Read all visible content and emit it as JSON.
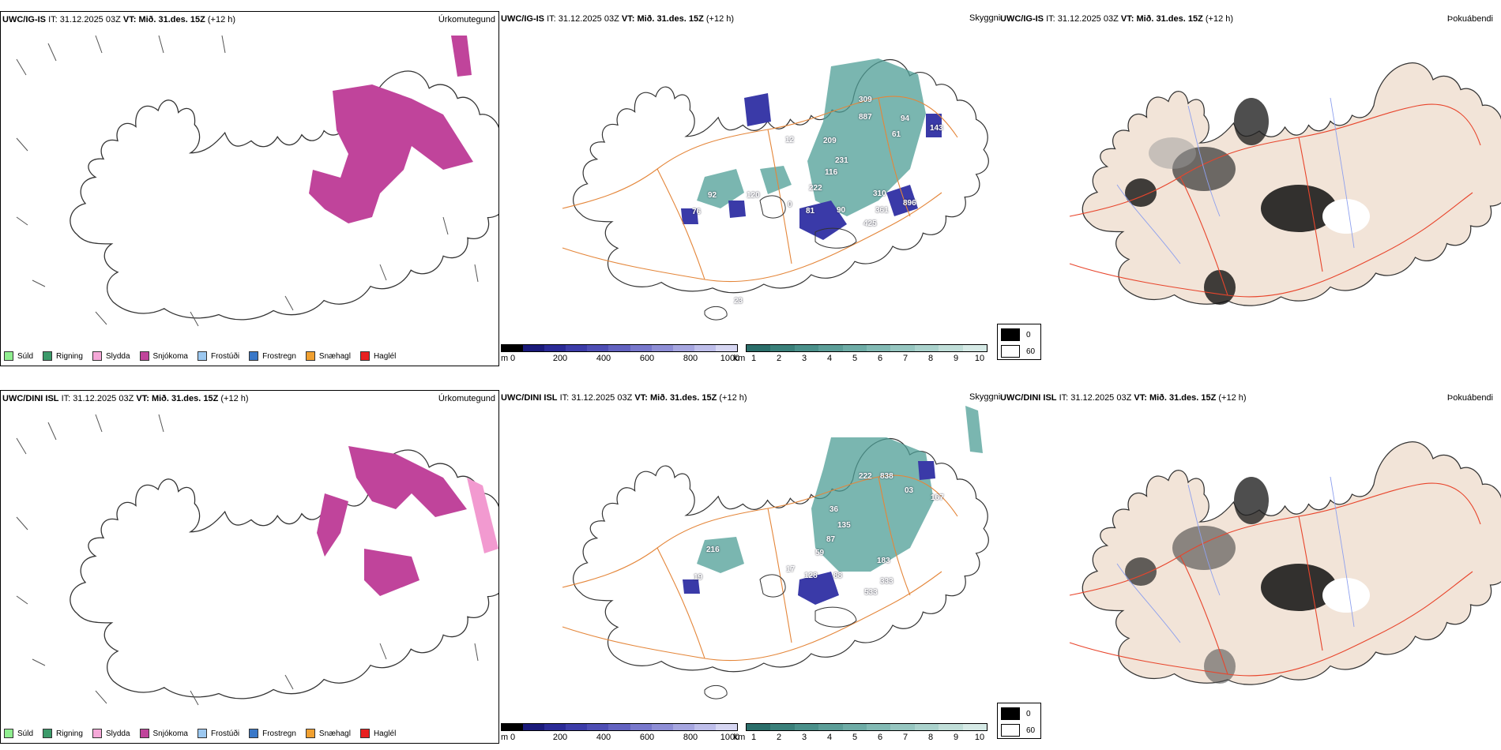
{
  "colors": {
    "snow": "#c0449b",
    "sleet": "#f29ad0",
    "land": "#f2e4d8",
    "road": "#e4863a",
    "road_red": "#e8452c",
    "river": "#8ea0ee",
    "teal": "#4e9e96",
    "blue": "#3a3aa8"
  },
  "row1": {
    "precip": {
      "model": "UWC/IG-IS",
      "it_label": "IT:",
      "it_value": "31.12.2025 03Z",
      "vt_label": "VT: Mið. 31.des. 15Z",
      "lead": "(+12 h)",
      "title": "Úrkomutegund"
    },
    "cloud": {
      "model": "UWC/IG-IS",
      "it_label": "IT:",
      "it_value": "31.12.2025 03Z",
      "vt_label": "VT: Mið. 31.des. 15Z",
      "lead": "(+12 h)",
      "title": "Skyggni",
      "labels": [
        "309",
        "887",
        "94",
        "143",
        "61",
        "12",
        "209",
        "231",
        "116",
        "222",
        "310",
        "896",
        "92",
        "120",
        "76",
        "0",
        "81",
        "90",
        "361",
        "425",
        "23"
      ]
    },
    "fog": {
      "model": "UWC/IG-IS",
      "it_label": "IT:",
      "it_value": "31.12.2025 03Z",
      "vt_label": "VT: Mið. 31.des. 15Z",
      "lead": "(+12 h)",
      "title": "Þokuábendi"
    }
  },
  "row2": {
    "precip": {
      "model": "UWC/DINI ISL",
      "it_label": "IT:",
      "it_value": "31.12.2025 03Z",
      "vt_label": "VT: Mið. 31.des. 15Z",
      "lead": "(+12 h)",
      "title": "Úrkomutegund"
    },
    "cloud": {
      "model": "UWC/DINI ISL",
      "it_label": "IT:",
      "it_value": "31.12.2025 03Z",
      "vt_label": "VT: Mið. 31.des. 15Z",
      "lead": "(+12 h)",
      "title": "Skyggni",
      "labels": [
        "222",
        "838",
        "03",
        "167",
        "36",
        "135",
        "87",
        "59",
        "216",
        "17",
        "128",
        "88",
        "183",
        "333",
        "533",
        "19"
      ]
    },
    "fog": {
      "model": "UWC/DINI ISL",
      "it_label": "IT:",
      "it_value": "31.12.2025 03Z",
      "vt_label": "VT: Mið. 31.des. 15Z",
      "lead": "(+12 h)",
      "title": "Þokuábendi"
    }
  },
  "precip_legend": [
    {
      "label": "Súld",
      "color": "#90ee90"
    },
    {
      "label": "Rigning",
      "color": "#3c9a6a"
    },
    {
      "label": "Slydda",
      "color": "#f5a8d8"
    },
    {
      "label": "Snjókoma",
      "color": "#c0449b"
    },
    {
      "label": "Frostúði",
      "color": "#9cc8f0"
    },
    {
      "label": "Frostregn",
      "color": "#3a78c8"
    },
    {
      "label": "Snæhagl",
      "color": "#f0a030"
    },
    {
      "label": "Haglél",
      "color": "#e82020"
    }
  ],
  "height_bar": {
    "unit": "m",
    "ticks": [
      "0",
      "200",
      "400",
      "600",
      "800",
      "1000"
    ],
    "colors": [
      "#000000",
      "#1a1a7a",
      "#2a2a96",
      "#3c3ca8",
      "#4e4eb4",
      "#6262c0",
      "#7878cc",
      "#8e8ed6",
      "#a6a6e0",
      "#bebeea",
      "#d6d6f2"
    ]
  },
  "vis_bar": {
    "unit": "km",
    "ticks": [
      "1",
      "2",
      "3",
      "4",
      "5",
      "6",
      "7",
      "8",
      "9",
      "10"
    ],
    "colors": [
      "#2a6e6a",
      "#3a807a",
      "#4a908a",
      "#5c9e98",
      "#6eaca6",
      "#82bab4",
      "#96c6c0",
      "#aad2cc",
      "#c0ded8",
      "#d6eae6"
    ]
  },
  "fog_legend": {
    "black_label": "0",
    "white_label": "60"
  }
}
